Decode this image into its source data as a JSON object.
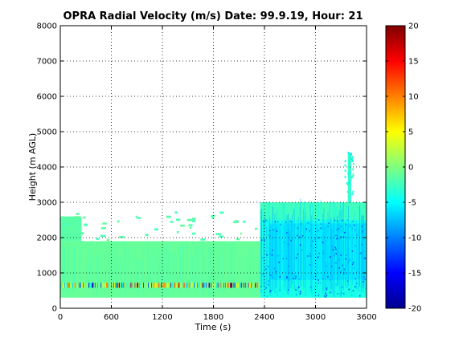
{
  "chart_data": {
    "type": "heatmap",
    "title": "OPRA Radial Velocity (m/s)  Date: 99.9.19, Hour: 21",
    "xlabel": "Time (s)",
    "ylabel": "Height (m AGL)",
    "xlim": [
      0,
      3600
    ],
    "ylim": [
      0,
      8000
    ],
    "xticks": [
      "0",
      "600",
      "1200",
      "1800",
      "2400",
      "3000",
      "3600"
    ],
    "yticks": [
      "0",
      "1000",
      "2000",
      "3000",
      "4000",
      "5000",
      "6000",
      "7000",
      "8000"
    ],
    "grid": true,
    "colorbar": {
      "min": -20,
      "max": 20,
      "colormap": "jet",
      "ticks": [
        "20",
        "15",
        "10",
        "5",
        "0",
        "-5",
        "-10",
        "-15",
        "-20"
      ]
    },
    "regions": [
      {
        "t": [
          0,
          2350
        ],
        "h": [
          300,
          1900
        ],
        "value": -1
      },
      {
        "t": [
          0,
          250
        ],
        "h": [
          1900,
          2600
        ],
        "value": -1.5
      },
      {
        "t": [
          2350,
          3600
        ],
        "h": [
          300,
          3000
        ],
        "value": -4
      },
      {
        "t": [
          2450,
          3600
        ],
        "h": [
          800,
          2400
        ],
        "value": -6
      },
      {
        "t": [
          2350,
          3600
        ],
        "h": [
          2500,
          3000
        ],
        "value": -2.5
      },
      {
        "t": [
          3380,
          3420
        ],
        "h": [
          3000,
          4400
        ],
        "value": -3
      },
      {
        "t": [
          0,
          2350
        ],
        "h": [
          580,
          720
        ],
        "value": -3
      }
    ],
    "scatter_notes": "sparse green patches 1900-2700 m for t 0-2400 s; high variance speckle (-20..20 m/s) near 650 m for t 0-2350 s"
  }
}
